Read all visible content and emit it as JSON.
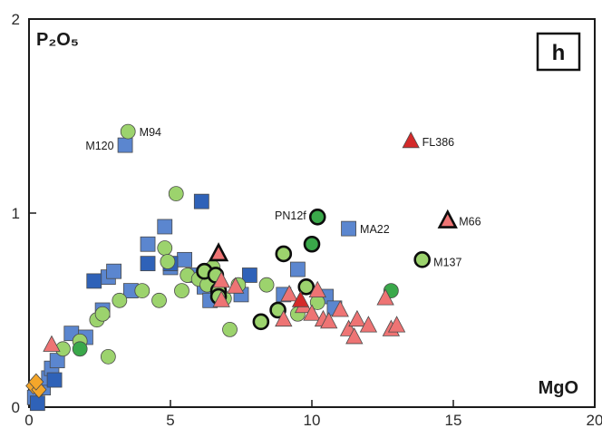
{
  "chart_data": {
    "type": "scatter",
    "panel_label": "h",
    "xlabel": "MgO",
    "ylabel": "P₂O₅",
    "xlim": [
      0,
      20
    ],
    "ylim": [
      0,
      2
    ],
    "x_ticks": [
      "0",
      "5",
      "10",
      "15",
      "20"
    ],
    "y_ticks": [
      "0",
      "1",
      "2"
    ],
    "grid": false,
    "colors": {
      "blue": "#5b86cf",
      "blue_dark": "#2f62b8",
      "green": "#9cd36d",
      "green_dark": "#3aa84a",
      "red": "#ee7474",
      "red_dark": "#d42a2a",
      "orange": "#f4a62a"
    },
    "series": [
      {
        "marker": "square",
        "color": "#5b86cf",
        "points": [
          [
            0.2,
            0.05
          ],
          [
            0.5,
            0.1
          ],
          [
            0.7,
            0.15
          ],
          [
            0.8,
            0.2
          ],
          [
            1.0,
            0.24
          ],
          [
            1.5,
            0.38
          ],
          [
            2.0,
            0.36
          ],
          [
            2.6,
            0.5
          ],
          [
            2.8,
            0.67
          ],
          [
            3.0,
            0.7
          ],
          [
            3.6,
            0.6
          ],
          [
            4.2,
            0.84
          ],
          [
            4.8,
            0.93
          ],
          [
            5.0,
            0.72
          ],
          [
            5.5,
            0.76
          ],
          [
            5.8,
            0.68
          ],
          [
            6.2,
            0.62
          ],
          [
            6.4,
            0.55
          ],
          [
            7.5,
            0.58
          ],
          [
            9.0,
            0.58
          ],
          [
            9.5,
            0.71
          ],
          [
            10.5,
            0.57
          ],
          [
            10.8,
            0.51
          ],
          [
            3.4,
            1.35
          ],
          [
            11.3,
            0.92
          ]
        ]
      },
      {
        "marker": "square",
        "color": "#2f62b8",
        "points": [
          [
            0.3,
            0.02
          ],
          [
            0.9,
            0.14
          ],
          [
            2.3,
            0.65
          ],
          [
            4.2,
            0.74
          ],
          [
            5.0,
            0.74
          ],
          [
            6.1,
            1.06
          ],
          [
            7.8,
            0.68
          ]
        ]
      },
      {
        "marker": "circle",
        "color": "#9cd36d",
        "points": [
          [
            1.2,
            0.3
          ],
          [
            1.8,
            0.34
          ],
          [
            2.4,
            0.45
          ],
          [
            2.6,
            0.48
          ],
          [
            2.8,
            0.26
          ],
          [
            3.2,
            0.55
          ],
          [
            4.0,
            0.6
          ],
          [
            4.6,
            0.55
          ],
          [
            4.8,
            0.82
          ],
          [
            4.9,
            0.75
          ],
          [
            5.2,
            1.1
          ],
          [
            5.4,
            0.6
          ],
          [
            5.6,
            0.68
          ],
          [
            6.0,
            0.66
          ],
          [
            6.3,
            0.63
          ],
          [
            6.5,
            0.72
          ],
          [
            6.9,
            0.56
          ],
          [
            7.1,
            0.4
          ],
          [
            7.4,
            0.63
          ],
          [
            8.4,
            0.63
          ],
          [
            9.5,
            0.48
          ],
          [
            10.2,
            0.54
          ],
          [
            3.5,
            1.42
          ]
        ]
      },
      {
        "marker": "circle",
        "color": "#9cd36d",
        "edge": "bold",
        "points": [
          [
            6.2,
            0.7
          ],
          [
            6.7,
            0.6
          ],
          [
            6.6,
            0.68
          ],
          [
            6.7,
            0.57
          ],
          [
            8.2,
            0.44
          ],
          [
            8.8,
            0.5
          ],
          [
            9.0,
            0.79
          ],
          [
            9.8,
            0.62
          ],
          [
            13.9,
            0.76
          ]
        ]
      },
      {
        "marker": "circle",
        "color": "#3aa84a",
        "points": [
          [
            1.8,
            0.3
          ],
          [
            12.8,
            0.6
          ]
        ]
      },
      {
        "marker": "circle",
        "color": "#3aa84a",
        "edge": "bold",
        "points": [
          [
            10.0,
            0.84
          ],
          [
            10.2,
            0.98
          ]
        ]
      },
      {
        "marker": "triangle",
        "color": "#ee7474",
        "points": [
          [
            0.8,
            0.32
          ],
          [
            6.8,
            0.55
          ],
          [
            7.3,
            0.62
          ],
          [
            9.0,
            0.45
          ],
          [
            9.2,
            0.58
          ],
          [
            9.7,
            0.52
          ],
          [
            10.0,
            0.48
          ],
          [
            10.2,
            0.6
          ],
          [
            10.4,
            0.45
          ],
          [
            10.6,
            0.44
          ],
          [
            11.0,
            0.5
          ],
          [
            11.3,
            0.4
          ],
          [
            11.5,
            0.36
          ],
          [
            11.6,
            0.45
          ],
          [
            12.0,
            0.42
          ],
          [
            12.6,
            0.56
          ],
          [
            12.8,
            0.4
          ],
          [
            13.0,
            0.42
          ],
          [
            6.8,
            0.65
          ]
        ]
      },
      {
        "marker": "triangle",
        "color": "#ee7474",
        "edge": "bold",
        "points": [
          [
            6.7,
            0.79
          ],
          [
            14.8,
            0.96
          ]
        ]
      },
      {
        "marker": "triangle",
        "color": "#d42a2a",
        "points": [
          [
            9.6,
            0.55
          ],
          [
            13.5,
            1.37
          ]
        ]
      },
      {
        "marker": "diamond",
        "color": "#f4a62a",
        "points": [
          [
            0.15,
            0.11
          ],
          [
            0.35,
            0.09
          ],
          [
            0.25,
            0.13
          ]
        ]
      }
    ],
    "annotations": [
      {
        "text": "M94",
        "x": 3.9,
        "y": 1.42,
        "anchor": "start"
      },
      {
        "text": "M120",
        "x": 3.0,
        "y": 1.35,
        "anchor": "end"
      },
      {
        "text": "FL386",
        "x": 13.9,
        "y": 1.37,
        "anchor": "start"
      },
      {
        "text": "PN12f",
        "x": 9.8,
        "y": 0.99,
        "anchor": "end"
      },
      {
        "text": "MA22",
        "x": 11.7,
        "y": 0.92,
        "anchor": "start"
      },
      {
        "text": "M66",
        "x": 15.2,
        "y": 0.96,
        "anchor": "start"
      },
      {
        "text": "M137",
        "x": 14.3,
        "y": 0.75,
        "anchor": "start"
      }
    ]
  }
}
